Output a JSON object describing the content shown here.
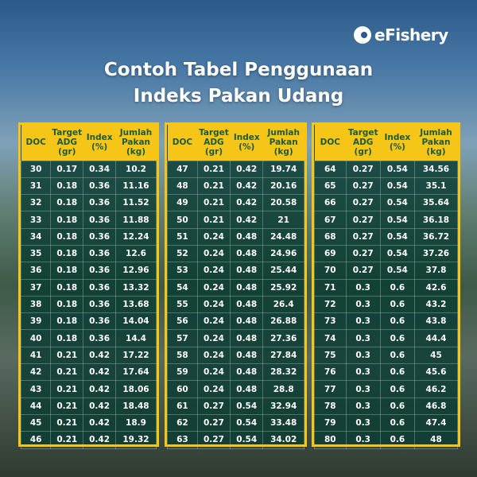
{
  "brand": "eFishery",
  "title": [
    "Contoh Tabel Penggunaan",
    "Indeks Pakan Udang"
  ],
  "headers": [
    "DOC",
    "Target ADG (gr)",
    "Index (%)",
    "Jumlah Pakan (kg)"
  ],
  "tables": [
    [
      [
        "30",
        "0.17",
        "0.34",
        "10.2"
      ],
      [
        "31",
        "0.18",
        "0.36",
        "11.16"
      ],
      [
        "32",
        "0.18",
        "0.36",
        "11.52"
      ],
      [
        "33",
        "0.18",
        "0.36",
        "11.88"
      ],
      [
        "34",
        "0.18",
        "0.36",
        "12.24"
      ],
      [
        "35",
        "0.18",
        "0.36",
        "12.6"
      ],
      [
        "36",
        "0.18",
        "0.36",
        "12.96"
      ],
      [
        "37",
        "0.18",
        "0.36",
        "13.32"
      ],
      [
        "38",
        "0.18",
        "0.36",
        "13.68"
      ],
      [
        "39",
        "0.18",
        "0.36",
        "14.04"
      ],
      [
        "40",
        "0.18",
        "0.36",
        "14.4"
      ],
      [
        "41",
        "0.21",
        "0.42",
        "17.22"
      ],
      [
        "42",
        "0.21",
        "0.42",
        "17.64"
      ],
      [
        "43",
        "0.21",
        "0.42",
        "18.06"
      ],
      [
        "44",
        "0.21",
        "0.42",
        "18.48"
      ],
      [
        "45",
        "0.21",
        "0.42",
        "18.9"
      ],
      [
        "46",
        "0.21",
        "0.42",
        "19.32"
      ]
    ],
    [
      [
        "47",
        "0.21",
        "0.42",
        "19.74"
      ],
      [
        "48",
        "0.21",
        "0.42",
        "20.16"
      ],
      [
        "49",
        "0.21",
        "0.42",
        "20.58"
      ],
      [
        "50",
        "0.21",
        "0.42",
        "21"
      ],
      [
        "51",
        "0.24",
        "0.48",
        "24.48"
      ],
      [
        "52",
        "0.24",
        "0.48",
        "24.96"
      ],
      [
        "53",
        "0.24",
        "0.48",
        "25.44"
      ],
      [
        "54",
        "0.24",
        "0.48",
        "25.92"
      ],
      [
        "55",
        "0.24",
        "0.48",
        "26.4"
      ],
      [
        "56",
        "0.24",
        "0.48",
        "26.88"
      ],
      [
        "57",
        "0.24",
        "0.48",
        "27.36"
      ],
      [
        "58",
        "0.24",
        "0.48",
        "27.84"
      ],
      [
        "59",
        "0.24",
        "0.48",
        "28.32"
      ],
      [
        "60",
        "0.24",
        "0.48",
        "28.8"
      ],
      [
        "61",
        "0.27",
        "0.54",
        "32.94"
      ],
      [
        "62",
        "0.27",
        "0.54",
        "33.48"
      ],
      [
        "63",
        "0.27",
        "0.54",
        "34.02"
      ]
    ],
    [
      [
        "64",
        "0.27",
        "0.54",
        "34.56"
      ],
      [
        "65",
        "0.27",
        "0.54",
        "35.1"
      ],
      [
        "66",
        "0.27",
        "0.54",
        "35.64"
      ],
      [
        "67",
        "0.27",
        "0.54",
        "36.18"
      ],
      [
        "68",
        "0.27",
        "0.54",
        "36.72"
      ],
      [
        "69",
        "0.27",
        "0.54",
        "37.26"
      ],
      [
        "70",
        "0.27",
        "0.54",
        "37.8"
      ],
      [
        "71",
        "0.3",
        "0.6",
        "42.6"
      ],
      [
        "72",
        "0.3",
        "0.6",
        "43.2"
      ],
      [
        "73",
        "0.3",
        "0.6",
        "43.8"
      ],
      [
        "74",
        "0.3",
        "0.6",
        "44.4"
      ],
      [
        "75",
        "0.3",
        "0.6",
        "45"
      ],
      [
        "76",
        "0.3",
        "0.6",
        "45.6"
      ],
      [
        "77",
        "0.3",
        "0.6",
        "46.2"
      ],
      [
        "78",
        "0.3",
        "0.6",
        "46.8"
      ],
      [
        "79",
        "0.3",
        "0.6",
        "47.4"
      ],
      [
        "80",
        "0.3",
        "0.6",
        "48"
      ]
    ]
  ],
  "colors": {
    "header": "#f5c518",
    "header_text": "#1f5a3a",
    "body": "#0a3c32"
  }
}
